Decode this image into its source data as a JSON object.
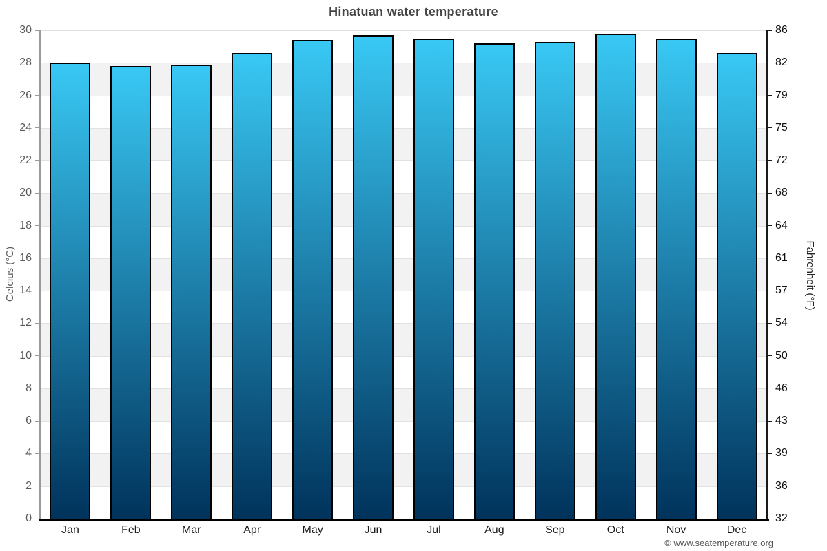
{
  "chart_data": {
    "type": "bar",
    "title": "Hinatuan water temperature",
    "categories": [
      "Jan",
      "Feb",
      "Mar",
      "Apr",
      "May",
      "Jun",
      "Jul",
      "Aug",
      "Sep",
      "Oct",
      "Nov",
      "Dec"
    ],
    "values": [
      28.0,
      27.8,
      27.9,
      28.6,
      29.4,
      29.7,
      29.5,
      29.2,
      29.3,
      29.8,
      29.5,
      28.6
    ],
    "ylabel_left": "Celcius (°C)",
    "ylabel_right": "Fahrenheit (°F)",
    "ylim": [
      0,
      30
    ],
    "ytick_step": 2,
    "yticks_left": [
      "30",
      "28",
      "26",
      "24",
      "22",
      "20",
      "18",
      "16",
      "14",
      "12",
      "10",
      "8",
      "6",
      "4",
      "2",
      "0"
    ],
    "yticks_right": [
      "86",
      "82",
      "79",
      "75",
      "72",
      "68",
      "64",
      "61",
      "57",
      "54",
      "50",
      "46",
      "43",
      "39",
      "36",
      "32"
    ],
    "legend": false,
    "grid": "alternating horizontal bands every 2°C",
    "footer": "© www.seatemperature.org",
    "colors": {
      "bar_top": "#39c8f4",
      "bar_bottom": "#00335c",
      "bar_border": "#000000",
      "band_gray": "#f2f2f2",
      "band_white": "#ffffff"
    }
  }
}
